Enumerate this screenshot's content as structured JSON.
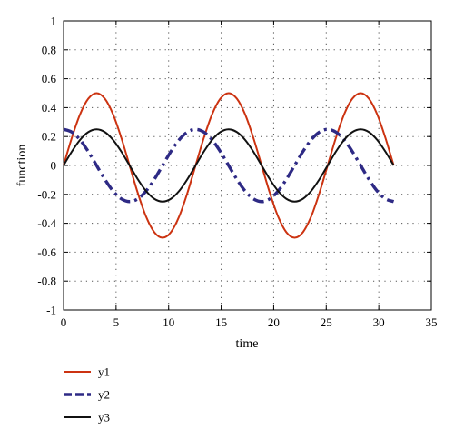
{
  "chart_data": {
    "type": "line",
    "xlabel": "time",
    "ylabel": "function",
    "xlim": [
      0,
      35
    ],
    "ylim": [
      -1,
      1
    ],
    "x_ticks": [
      "0",
      "5",
      "10",
      "15",
      "20",
      "25",
      "30",
      "35"
    ],
    "y_ticks": [
      "-1",
      "-0.8",
      "-0.6",
      "-0.4",
      "-0.2",
      "0",
      "0.2",
      "0.4",
      "0.6",
      "0.8",
      "1"
    ],
    "grid": true,
    "legend_position": "bottom-left, below plot",
    "x": [
      0,
      0.785,
      1.571,
      2.356,
      3.142,
      3.927,
      4.712,
      5.498,
      6.283,
      7.069,
      7.854,
      8.639,
      9.425,
      10.21,
      10.996,
      11.781,
      12.566,
      13.352,
      14.137,
      14.923,
      15.708,
      16.493,
      17.279,
      18.064,
      18.85,
      19.635,
      20.42,
      21.206,
      21.991,
      22.777,
      23.562,
      24.347,
      25.133,
      25.918,
      26.704,
      27.489,
      28.274,
      29.06,
      29.845,
      30.631,
      31.416
    ],
    "series": [
      {
        "name": "y1",
        "color": "#cc3311",
        "style": "solid",
        "values": [
          0,
          0.191,
          0.354,
          0.462,
          0.5,
          0.462,
          0.354,
          0.191,
          0,
          -0.191,
          -0.354,
          -0.462,
          -0.5,
          -0.462,
          -0.354,
          -0.191,
          0,
          0.191,
          0.354,
          0.462,
          0.5,
          0.462,
          0.354,
          0.191,
          0,
          -0.191,
          -0.354,
          -0.462,
          -0.5,
          -0.462,
          -0.354,
          -0.191,
          0,
          0.191,
          0.354,
          0.462,
          0.5,
          0.462,
          0.354,
          0.191,
          0
        ]
      },
      {
        "name": "y2",
        "color": "#2e2a85",
        "style": "dashdot",
        "values": [
          0.25,
          0.231,
          0.177,
          0.096,
          0,
          -0.096,
          -0.177,
          -0.231,
          -0.25,
          -0.231,
          -0.177,
          -0.096,
          0,
          0.096,
          0.177,
          0.231,
          0.25,
          0.231,
          0.177,
          0.096,
          0,
          -0.096,
          -0.177,
          -0.231,
          -0.25,
          -0.231,
          -0.177,
          -0.096,
          0,
          0.096,
          0.177,
          0.231,
          0.25,
          0.231,
          0.177,
          0.096,
          0,
          -0.096,
          -0.177,
          -0.231,
          -0.25
        ]
      },
      {
        "name": "y3",
        "color": "#111111",
        "style": "solid",
        "values": [
          0,
          0.096,
          0.177,
          0.231,
          0.25,
          0.231,
          0.177,
          0.096,
          0,
          -0.096,
          -0.177,
          -0.231,
          -0.25,
          -0.231,
          -0.177,
          -0.096,
          0,
          0.096,
          0.177,
          0.231,
          0.25,
          0.231,
          0.177,
          0.096,
          0,
          -0.096,
          -0.177,
          -0.231,
          -0.25,
          -0.231,
          -0.177,
          -0.096,
          0,
          0.096,
          0.177,
          0.231,
          0.25,
          0.231,
          0.177,
          0.096,
          0
        ]
      }
    ]
  }
}
